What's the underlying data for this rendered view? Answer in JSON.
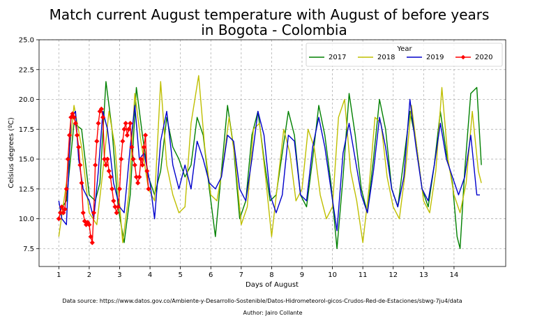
{
  "chart_data": {
    "type": "line",
    "title_lines": [
      "Match current August temperature with August of before years",
      "in Bogota - Colombia"
    ],
    "xlabel": "Days of August",
    "ylabel": "Celsius degrees  (ºC)",
    "xlim": [
      0.35,
      15.7
    ],
    "ylim": [
      6.0,
      25.0
    ],
    "x_ticks": [
      1,
      2,
      3,
      4,
      5,
      6,
      7,
      8,
      9,
      10,
      11,
      12,
      13,
      14
    ],
    "x_tick_labels": [
      "1",
      "2",
      "3",
      "4",
      "5",
      "6",
      "7",
      "8",
      "9",
      "10",
      "11",
      "12",
      "13",
      "14"
    ],
    "y_ticks": [
      7.5,
      10.0,
      12.5,
      15.0,
      17.5,
      20.0,
      22.5,
      25.0
    ],
    "y_tick_labels": [
      "7.5",
      "10.0",
      "12.5",
      "15.0",
      "17.5",
      "20.0",
      "22.5",
      "25.0"
    ],
    "grid": true,
    "legend": {
      "title": "Year",
      "position": "top-right",
      "columns": 4
    },
    "series": [
      {
        "name": "2017",
        "color": "#008000",
        "marker": false,
        "x": [
          1.0,
          1.25,
          1.5,
          1.75,
          2.0,
          2.2,
          2.35,
          2.55,
          2.75,
          2.95,
          3.15,
          3.35,
          3.55,
          3.75,
          3.95,
          4.15,
          4.35,
          4.55,
          4.75,
          4.95,
          5.15,
          5.35,
          5.55,
          5.75,
          5.95,
          6.15,
          6.35,
          6.55,
          6.75,
          6.95,
          7.15,
          7.35,
          7.55,
          7.75,
          7.95,
          8.15,
          8.35,
          8.55,
          8.75,
          8.95,
          9.15,
          9.35,
          9.55,
          9.75,
          9.95,
          10.15,
          10.35,
          10.55,
          10.75,
          10.95,
          11.15,
          11.35,
          11.55,
          11.75,
          11.95,
          12.15,
          12.35,
          12.55,
          12.75,
          12.95,
          13.15,
          13.35,
          13.55,
          13.75,
          13.95,
          14.1,
          14.2,
          14.35,
          14.55,
          14.75,
          14.9
        ],
        "y": [
          10.5,
          11.5,
          18.0,
          17.5,
          12.0,
          11.5,
          13.0,
          21.5,
          17.5,
          11.0,
          8.0,
          12.0,
          21.0,
          17.0,
          13.5,
          12.0,
          14.0,
          18.5,
          16.0,
          15.0,
          13.5,
          14.5,
          18.5,
          17.0,
          12.5,
          8.5,
          14.0,
          19.5,
          16.0,
          10.0,
          11.5,
          17.0,
          19.0,
          15.0,
          11.5,
          12.0,
          15.5,
          19.0,
          17.0,
          12.0,
          11.0,
          15.0,
          19.5,
          17.0,
          13.0,
          7.5,
          13.5,
          20.5,
          17.0,
          12.5,
          10.5,
          15.0,
          20.0,
          17.5,
          12.5,
          11.0,
          15.0,
          19.0,
          16.5,
          12.5,
          11.0,
          14.5,
          19.0,
          15.5,
          13.0,
          8.5,
          7.5,
          14.0,
          20.5,
          21.0,
          14.5
        ]
      },
      {
        "name": "2018",
        "color": "#bfbf00",
        "marker": false,
        "x": [
          1.0,
          1.25,
          1.5,
          1.75,
          2.0,
          2.25,
          2.45,
          2.65,
          2.85,
          3.1,
          3.3,
          3.5,
          3.7,
          3.95,
          4.15,
          4.35,
          4.55,
          4.75,
          4.95,
          5.15,
          5.35,
          5.6,
          5.8,
          6.0,
          6.2,
          6.4,
          6.6,
          6.8,
          7.0,
          7.2,
          7.4,
          7.6,
          7.8,
          8.0,
          8.2,
          8.4,
          8.6,
          8.8,
          9.0,
          9.2,
          9.4,
          9.6,
          9.8,
          10.0,
          10.2,
          10.4,
          10.6,
          10.8,
          11.0,
          11.2,
          11.4,
          11.6,
          11.8,
          12.0,
          12.2,
          12.4,
          12.6,
          12.8,
          13.0,
          13.2,
          13.4,
          13.6,
          13.8,
          14.0,
          14.2,
          14.4,
          14.6,
          14.8,
          14.9
        ],
        "y": [
          8.5,
          13.0,
          19.5,
          16.0,
          10.5,
          9.5,
          14.0,
          19.0,
          16.0,
          8.0,
          12.0,
          20.5,
          16.5,
          12.5,
          11.5,
          21.5,
          14.5,
          12.0,
          10.5,
          11.0,
          18.0,
          22.0,
          16.0,
          12.0,
          11.5,
          14.5,
          18.5,
          15.0,
          9.5,
          11.0,
          17.5,
          18.0,
          13.5,
          8.5,
          13.0,
          17.5,
          15.5,
          11.5,
          12.5,
          17.5,
          16.0,
          12.0,
          10.0,
          11.0,
          18.5,
          20.0,
          14.0,
          11.5,
          8.0,
          12.5,
          18.5,
          18.0,
          13.5,
          11.0,
          10.0,
          14.0,
          19.5,
          15.5,
          11.5,
          10.5,
          14.0,
          21.0,
          15.0,
          12.0,
          10.5,
          13.0,
          19.0,
          14.0,
          13.0
        ]
      },
      {
        "name": "2019",
        "color": "#0000cc",
        "marker": false,
        "x": [
          1.0,
          1.1,
          1.25,
          1.4,
          1.55,
          1.65,
          1.8,
          2.0,
          2.15,
          2.3,
          2.45,
          2.6,
          2.8,
          3.0,
          3.15,
          3.35,
          3.5,
          3.65,
          3.8,
          4.0,
          4.15,
          4.35,
          4.55,
          4.75,
          4.95,
          5.15,
          5.35,
          5.55,
          5.75,
          5.95,
          6.15,
          6.35,
          6.55,
          6.75,
          6.95,
          7.15,
          7.35,
          7.55,
          7.75,
          7.95,
          8.15,
          8.35,
          8.55,
          8.75,
          8.95,
          9.15,
          9.35,
          9.55,
          9.75,
          9.95,
          10.15,
          10.35,
          10.55,
          10.75,
          10.95,
          11.15,
          11.35,
          11.55,
          11.75,
          11.95,
          12.15,
          12.35,
          12.55,
          12.75,
          12.95,
          13.15,
          13.35,
          13.55,
          13.75,
          13.95,
          14.15,
          14.35,
          14.55,
          14.75,
          14.85
        ],
        "y": [
          11.5,
          10.0,
          9.5,
          18.5,
          19.0,
          15.0,
          12.5,
          11.5,
          10.0,
          14.0,
          19.0,
          17.5,
          13.0,
          11.0,
          10.5,
          16.0,
          19.5,
          15.0,
          15.5,
          13.0,
          10.0,
          16.5,
          19.0,
          14.5,
          12.5,
          14.5,
          12.5,
          16.5,
          15.0,
          13.0,
          12.5,
          13.5,
          17.0,
          16.5,
          12.5,
          11.5,
          15.0,
          19.0,
          17.0,
          12.0,
          10.5,
          12.0,
          17.0,
          16.5,
          12.0,
          11.5,
          16.0,
          18.5,
          16.0,
          12.5,
          9.0,
          15.5,
          18.0,
          15.0,
          12.0,
          10.5,
          14.0,
          18.5,
          16.0,
          12.5,
          11.0,
          13.5,
          20.0,
          16.0,
          12.5,
          11.5,
          14.5,
          18.0,
          15.0,
          13.5,
          12.0,
          13.5,
          17.0,
          12.0,
          12.0
        ]
      },
      {
        "name": "2020",
        "color": "#ff0000",
        "marker": true,
        "x": [
          1.0,
          1.05,
          1.1,
          1.15,
          1.2,
          1.25,
          1.3,
          1.35,
          1.4,
          1.45,
          1.5,
          1.55,
          1.6,
          1.65,
          1.7,
          1.75,
          1.8,
          1.85,
          1.9,
          1.95,
          2.0,
          2.05,
          2.1,
          2.15,
          2.2,
          2.25,
          2.3,
          2.35,
          2.4,
          2.45,
          2.5,
          2.55,
          2.6,
          2.65,
          2.7,
          2.75,
          2.8,
          2.85,
          2.9,
          2.95,
          3.0,
          3.05,
          3.1,
          3.15,
          3.2,
          3.25,
          3.3,
          3.35,
          3.4,
          3.45,
          3.5,
          3.55,
          3.6,
          3.65,
          3.7,
          3.75,
          3.8,
          3.85,
          3.9,
          3.95
        ],
        "y": [
          10.0,
          10.5,
          11.0,
          10.5,
          10.8,
          12.5,
          15.0,
          17.0,
          18.5,
          18.8,
          18.5,
          18.0,
          17.0,
          16.0,
          14.5,
          13.0,
          10.5,
          9.8,
          9.5,
          9.7,
          9.5,
          8.5,
          8.0,
          10.5,
          14.5,
          16.5,
          18.0,
          19.0,
          19.2,
          18.5,
          15.0,
          14.5,
          15.0,
          14.0,
          13.5,
          12.5,
          11.5,
          11.0,
          10.5,
          11.0,
          12.5,
          15.0,
          16.5,
          17.5,
          18.0,
          17.0,
          17.5,
          18.0,
          16.0,
          15.0,
          14.5,
          13.5,
          13.0,
          13.5,
          15.0,
          14.5,
          16.0,
          17.0,
          14.0,
          12.5
        ]
      }
    ]
  },
  "footer": {
    "source": "Data source: https://www.datos.gov.co/Ambiente-y-Desarrollo-Sostenible/Datos-Hidrometeorol-gicos-Crudos-Red-de-Estaciones/sbwg-7ju4/data",
    "author": "Author: Jairo Collante"
  }
}
